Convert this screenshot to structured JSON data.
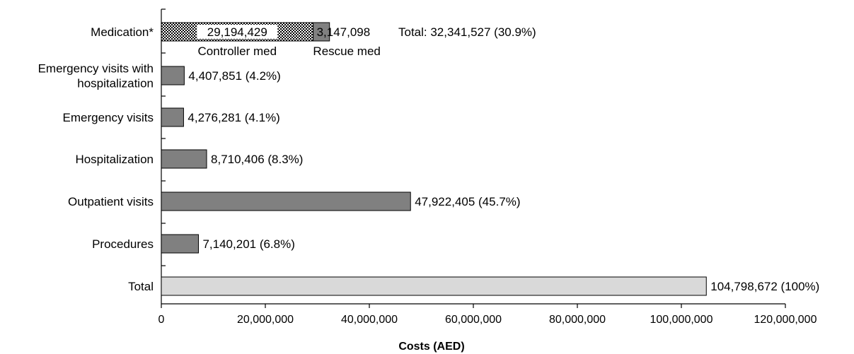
{
  "chart_data": {
    "type": "bar",
    "orientation": "horizontal",
    "xlabel": "Costs (AED)",
    "xlim": [
      0,
      120000000
    ],
    "x_ticks": [
      0,
      20000000,
      40000000,
      60000000,
      80000000,
      100000000,
      120000000
    ],
    "x_tick_labels": [
      "0",
      "20,000,000",
      "40,000,000",
      "60,000,000",
      "80,000,000",
      "100,000,000",
      "120,000,000"
    ],
    "grid": false,
    "categories": [
      {
        "label": "Medication*",
        "stacked": true,
        "segments": [
          {
            "name": "Controller med",
            "value": 29194429,
            "value_label": "29,194,429",
            "fill": "dotted"
          },
          {
            "name": "Rescue med",
            "value": 3147098,
            "value_label": "3,147,098",
            "fill": "#808080"
          }
        ],
        "total_label": "Total: 32,341,527 (30.9%)"
      },
      {
        "label": "Emergency visits with hospitalization",
        "label_lines": [
          "Emergency visits with",
          "hospitalization"
        ],
        "value": 4407851,
        "value_label": "4,407,851 (4.2%)",
        "fill": "#808080"
      },
      {
        "label": "Emergency visits",
        "value": 4276281,
        "value_label": "4,276,281 (4.1%)",
        "fill": "#808080"
      },
      {
        "label": "Hospitalization",
        "value": 8710406,
        "value_label": "8,710,406 (8.3%)",
        "fill": "#808080"
      },
      {
        "label": "Outpatient visits",
        "value": 47922405,
        "value_label": "47,922,405 (45.7%)",
        "fill": "#808080"
      },
      {
        "label": "Procedures",
        "value": 7140201,
        "value_label": "7,140,201 (6.8%)",
        "fill": "#808080"
      },
      {
        "label": "Total",
        "value": 104798672,
        "value_label": "104,798,672 (100%)",
        "fill": "#d9d9d9"
      }
    ]
  }
}
